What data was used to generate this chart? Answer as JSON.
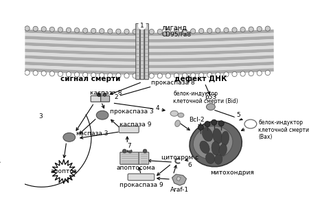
{
  "bg_color": "#ffffff",
  "labels": {
    "ligand": "лиганд",
    "receptor": "CD95/Fa8",
    "death_signal": "сигнал смерти",
    "dna_defect": "дефект ДНК",
    "procaspase8": "прокаспаза 8",
    "caspase8": "каспаза 8",
    "procaspase3": "прокаспаза 3",
    "caspase3": "каспаза 3",
    "bid": "белок-индуктор\nклеточной смерти (Bid)",
    "bax": "белок-индуктор\nклеточной смерти\n(Bax)",
    "bcl2": "Bcl-2",
    "p53": "p53",
    "cytochrome": "цитохром с",
    "procaspase9": "прокаспаза 9",
    "caspase9": "каспаза 9",
    "apoptosome": "апоптосома",
    "apoptosis": "апоптоз",
    "mitochondria": "митохондрия",
    "araf1": "Araf-1"
  }
}
